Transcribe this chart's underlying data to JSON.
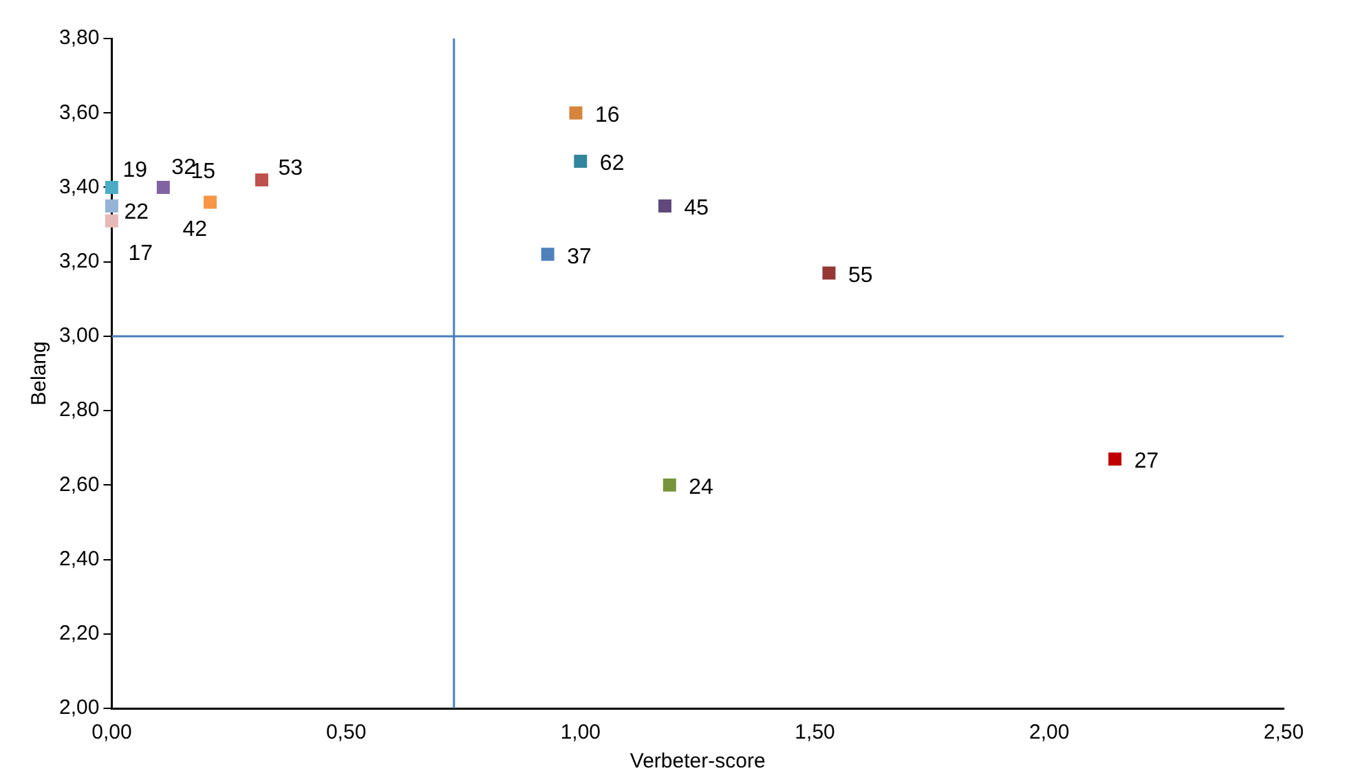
{
  "chart_data": {
    "type": "scatter",
    "xlabel": "Verbeter-score",
    "ylabel": "Belang",
    "marker": "square",
    "grid": false,
    "legend": false,
    "xlim": [
      0,
      2.5
    ],
    "xticks": [
      {
        "value": 0,
        "label": "0,00"
      },
      {
        "value": 0.5,
        "label": "0,50"
      },
      {
        "value": 1,
        "label": "1,00"
      },
      {
        "value": 1.5,
        "label": "1,50"
      },
      {
        "value": 2,
        "label": "2,00"
      },
      {
        "value": 2.5,
        "label": "2,50"
      }
    ],
    "ylim": [
      2,
      3.8
    ],
    "yticks": [
      {
        "value": 2,
        "label": "2,00"
      },
      {
        "value": 2.2,
        "label": "2,20"
      },
      {
        "value": 2.4,
        "label": "2,40"
      },
      {
        "value": 2.6,
        "label": "2,60"
      },
      {
        "value": 2.8,
        "label": "2,80"
      },
      {
        "value": 3,
        "label": "3,00"
      },
      {
        "value": 3.2,
        "label": "3,20"
      },
      {
        "value": 3.4,
        "label": "3,40"
      },
      {
        "value": 3.6,
        "label": "3,60"
      },
      {
        "value": 3.8,
        "label": "3,80"
      }
    ],
    "series": [
      {
        "x": [
          0,
          0,
          0,
          0.11,
          0.21,
          0.32,
          0.99,
          1.0,
          1.18,
          0.93,
          1.53,
          1.19,
          2.14
        ],
        "values": [
          3.4,
          3.35,
          3.31,
          3.4,
          3.36,
          3.42,
          3.6,
          3.47,
          3.35,
          3.22,
          3.17,
          2.6,
          2.67
        ],
        "colors": [
          "#4bacc6",
          "#95b3d7",
          "#e6b9b8",
          "#8064a2",
          "#f79646",
          "#c0504d",
          "#d7843c",
          "#31859c",
          "#604a7b",
          "#4f81bd",
          "#953735",
          "#77933c",
          "#c00000"
        ]
      }
    ],
    "ref_lines": [
      {
        "axis": "x",
        "value": 0.73,
        "color": "#4a7ebb"
      },
      {
        "axis": "y",
        "value": 3.0,
        "color": "#4a7ebb"
      }
    ],
    "annotations": [
      {
        "text": "19",
        "x": 0,
        "y": 3.4
      },
      {
        "text": "22",
        "x": 0,
        "y": 3.35
      },
      {
        "text": "17",
        "x": 0,
        "y": 3.31
      },
      {
        "text": "32",
        "x": 0.11,
        "y": 3.4
      },
      {
        "text": "15",
        "x": 0.21,
        "y": 3.36
      },
      {
        "text": "42",
        "x": 0.21,
        "y": 3.36
      },
      {
        "text": "53",
        "x": 0.32,
        "y": 3.42
      },
      {
        "text": "16",
        "x": 0.99,
        "y": 3.6
      },
      {
        "text": "62",
        "x": 1.0,
        "y": 3.47
      },
      {
        "text": "45",
        "x": 1.18,
        "y": 3.35
      },
      {
        "text": "37",
        "x": 0.93,
        "y": 3.22
      },
      {
        "text": "55",
        "x": 1.53,
        "y": 3.17
      },
      {
        "text": "24",
        "x": 1.19,
        "y": 2.6
      },
      {
        "text": "27",
        "x": 2.14,
        "y": 2.67
      }
    ]
  }
}
